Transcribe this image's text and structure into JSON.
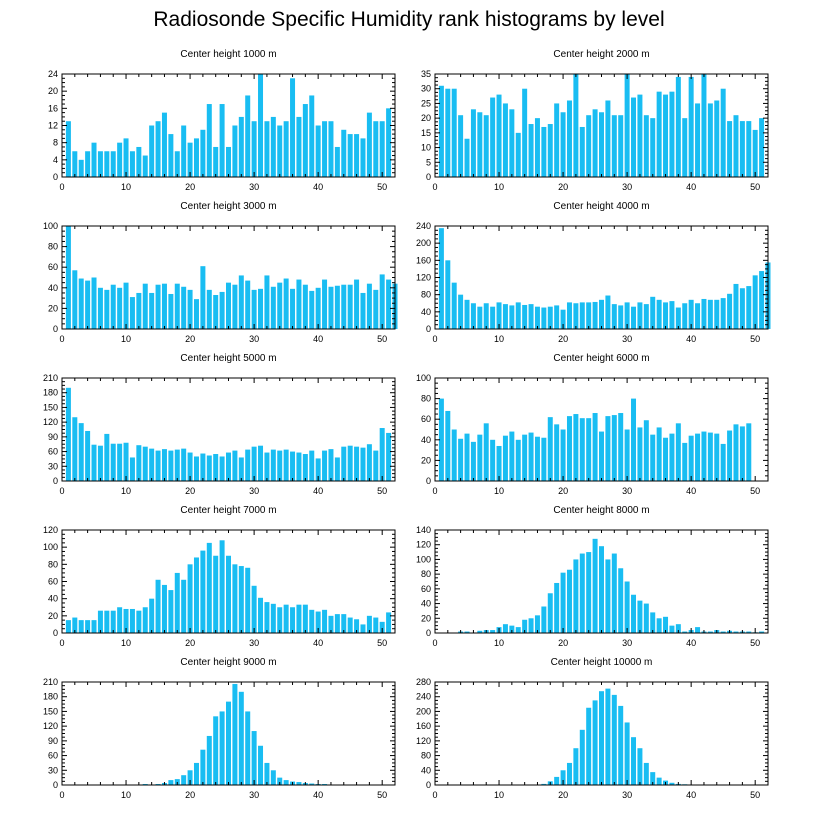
{
  "figure_title": "Radiosonde Specific Humidity rank histograms by level",
  "colors": {
    "bar": "#19bdf2",
    "axis": "#000000",
    "background": "#ffffff"
  },
  "chart_data": [
    {
      "type": "bar",
      "title": "Center height 1000 m",
      "xlim": [
        0,
        52
      ],
      "ylim": [
        0,
        24
      ],
      "xticks": [
        0,
        10,
        20,
        30,
        40,
        50
      ],
      "yticks": [
        0,
        4,
        8,
        12,
        16,
        20,
        24
      ],
      "values": [
        13,
        6,
        4,
        6,
        8,
        6,
        6,
        6,
        8,
        9,
        6,
        7,
        5,
        12,
        13,
        15,
        10,
        6,
        12,
        8,
        9,
        11,
        17,
        7,
        17,
        7,
        12,
        14,
        19,
        13,
        24,
        13,
        14,
        12,
        13,
        23,
        14,
        17,
        19,
        12,
        13,
        13,
        7,
        11,
        10,
        10,
        9,
        15,
        13,
        13,
        16
      ]
    },
    {
      "type": "bar",
      "title": "Center height 2000 m",
      "xlim": [
        0,
        52
      ],
      "ylim": [
        0,
        35
      ],
      "xticks": [
        0,
        10,
        20,
        30,
        40,
        50
      ],
      "yticks": [
        0,
        5,
        10,
        15,
        20,
        25,
        30,
        35
      ],
      "values": [
        31,
        30,
        30,
        21,
        13,
        23,
        22,
        21,
        27,
        28,
        25,
        23,
        15,
        30,
        18,
        20,
        17,
        18,
        25,
        22,
        26,
        35,
        17,
        21,
        23,
        22,
        26,
        21,
        21,
        35,
        27,
        28,
        21,
        20,
        29,
        28,
        29,
        34,
        20,
        34,
        25,
        35,
        25,
        26,
        30,
        19,
        21,
        19,
        19,
        16,
        20
      ]
    },
    {
      "type": "bar",
      "title": "Center height 3000 m",
      "xlim": [
        0,
        52
      ],
      "ylim": [
        0,
        100
      ],
      "xticks": [
        0,
        10,
        20,
        30,
        40,
        50
      ],
      "yticks": [
        0,
        20,
        40,
        60,
        80,
        100
      ],
      "values": [
        100,
        57,
        49,
        47,
        50,
        40,
        38,
        43,
        40,
        45,
        31,
        35,
        44,
        35,
        43,
        44,
        34,
        44,
        41,
        38,
        29,
        61,
        38,
        33,
        36,
        45,
        43,
        52,
        47,
        38,
        39,
        52,
        41,
        45,
        49,
        39,
        48,
        43,
        37,
        40,
        48,
        41,
        42,
        43,
        43,
        48,
        35,
        44,
        38,
        53,
        48,
        44
      ]
    },
    {
      "type": "bar",
      "title": "Center height 4000 m",
      "xlim": [
        0,
        52
      ],
      "ylim": [
        0,
        240
      ],
      "xticks": [
        0,
        10,
        20,
        30,
        40,
        50
      ],
      "yticks": [
        0,
        40,
        80,
        120,
        160,
        200,
        240
      ],
      "values": [
        235,
        160,
        108,
        80,
        68,
        60,
        52,
        60,
        52,
        62,
        58,
        55,
        62,
        56,
        58,
        52,
        50,
        52,
        55,
        45,
        62,
        60,
        62,
        62,
        63,
        68,
        78,
        58,
        55,
        62,
        52,
        62,
        58,
        75,
        68,
        62,
        65,
        50,
        60,
        68,
        60,
        70,
        68,
        68,
        72,
        82,
        105,
        95,
        100,
        125,
        135,
        155
      ]
    },
    {
      "type": "bar",
      "title": "Center height 5000 m",
      "xlim": [
        0,
        52
      ],
      "ylim": [
        0,
        210
      ],
      "xticks": [
        0,
        10,
        20,
        30,
        40,
        50
      ],
      "yticks": [
        0,
        30,
        60,
        90,
        120,
        150,
        180,
        210
      ],
      "values": [
        190,
        130,
        118,
        102,
        74,
        72,
        96,
        76,
        76,
        78,
        48,
        73,
        70,
        66,
        62,
        65,
        62,
        64,
        66,
        58,
        50,
        56,
        52,
        55,
        50,
        58,
        62,
        48,
        64,
        70,
        72,
        58,
        64,
        62,
        64,
        60,
        58,
        55,
        62,
        46,
        62,
        65,
        48,
        70,
        72,
        70,
        68,
        75,
        62,
        108,
        98
      ]
    },
    {
      "type": "bar",
      "title": "Center height 6000 m",
      "xlim": [
        0,
        52
      ],
      "ylim": [
        0,
        100
      ],
      "xticks": [
        0,
        10,
        20,
        30,
        40,
        50
      ],
      "yticks": [
        0,
        20,
        40,
        60,
        80,
        100
      ],
      "values": [
        80,
        68,
        50,
        41,
        46,
        38,
        45,
        56,
        40,
        34,
        44,
        48,
        40,
        45,
        47,
        43,
        42,
        62,
        55,
        50,
        63,
        65,
        61,
        61,
        66,
        48,
        63,
        64,
        66,
        50,
        80,
        52,
        59,
        45,
        52,
        42,
        46,
        56,
        37,
        44,
        46,
        48,
        47,
        46,
        36,
        49,
        55,
        53,
        56
      ]
    },
    {
      "type": "bar",
      "title": "Center height 7000 m",
      "xlim": [
        0,
        52
      ],
      "ylim": [
        0,
        120
      ],
      "xticks": [
        0,
        10,
        20,
        30,
        40,
        50
      ],
      "yticks": [
        0,
        20,
        40,
        60,
        80,
        100,
        120
      ],
      "values": [
        15,
        18,
        15,
        15,
        15,
        26,
        26,
        26,
        30,
        28,
        28,
        26,
        30,
        40,
        62,
        56,
        50,
        70,
        62,
        80,
        88,
        96,
        105,
        90,
        108,
        90,
        80,
        78,
        76,
        55,
        41,
        36,
        34,
        30,
        33,
        30,
        33,
        33,
        27,
        25,
        27,
        20,
        22,
        22,
        18,
        16,
        10,
        20,
        18,
        13,
        24
      ]
    },
    {
      "type": "bar",
      "title": "Center height 8000 m",
      "xlim": [
        0,
        52
      ],
      "ylim": [
        0,
        140
      ],
      "xticks": [
        0,
        10,
        20,
        30,
        40,
        50
      ],
      "yticks": [
        0,
        20,
        40,
        60,
        80,
        100,
        120,
        140
      ],
      "values": [
        0,
        0,
        0,
        2,
        2,
        0,
        3,
        4,
        4,
        8,
        12,
        10,
        8,
        18,
        20,
        24,
        36,
        54,
        68,
        82,
        86,
        100,
        108,
        110,
        128,
        118,
        100,
        108,
        88,
        70,
        52,
        44,
        40,
        28,
        20,
        22,
        10,
        12,
        2,
        4,
        8,
        2,
        2,
        4,
        2,
        3,
        2,
        2,
        2,
        1,
        2
      ]
    },
    {
      "type": "bar",
      "title": "Center height 9000 m",
      "xlim": [
        0,
        52
      ],
      "ylim": [
        0,
        210
      ],
      "xticks": [
        0,
        10,
        20,
        30,
        40,
        50
      ],
      "yticks": [
        0,
        30,
        60,
        90,
        120,
        150,
        180,
        210
      ],
      "values": [
        0,
        0,
        0,
        0,
        0,
        0,
        0,
        0,
        0,
        0,
        0,
        1,
        2,
        1,
        2,
        4,
        10,
        12,
        20,
        30,
        45,
        72,
        100,
        140,
        150,
        170,
        206,
        190,
        150,
        110,
        80,
        45,
        30,
        15,
        10,
        7,
        6,
        4,
        3,
        2,
        2,
        1,
        1,
        1,
        0,
        0,
        0,
        1,
        0,
        0,
        0
      ]
    },
    {
      "type": "bar",
      "title": "Center height 10000 m",
      "xlim": [
        0,
        52
      ],
      "ylim": [
        0,
        280
      ],
      "xticks": [
        0,
        10,
        20,
        30,
        40,
        50
      ],
      "yticks": [
        0,
        40,
        80,
        120,
        160,
        200,
        240,
        280
      ],
      "values": [
        0,
        0,
        0,
        0,
        0,
        0,
        0,
        0,
        0,
        0,
        0,
        0,
        0,
        0,
        0,
        1,
        3,
        10,
        22,
        40,
        60,
        100,
        150,
        210,
        230,
        255,
        262,
        245,
        215,
        170,
        130,
        100,
        60,
        35,
        20,
        12,
        6,
        3,
        2,
        1,
        1,
        1,
        0,
        0,
        0,
        0,
        0,
        0,
        0,
        0,
        0
      ]
    }
  ]
}
